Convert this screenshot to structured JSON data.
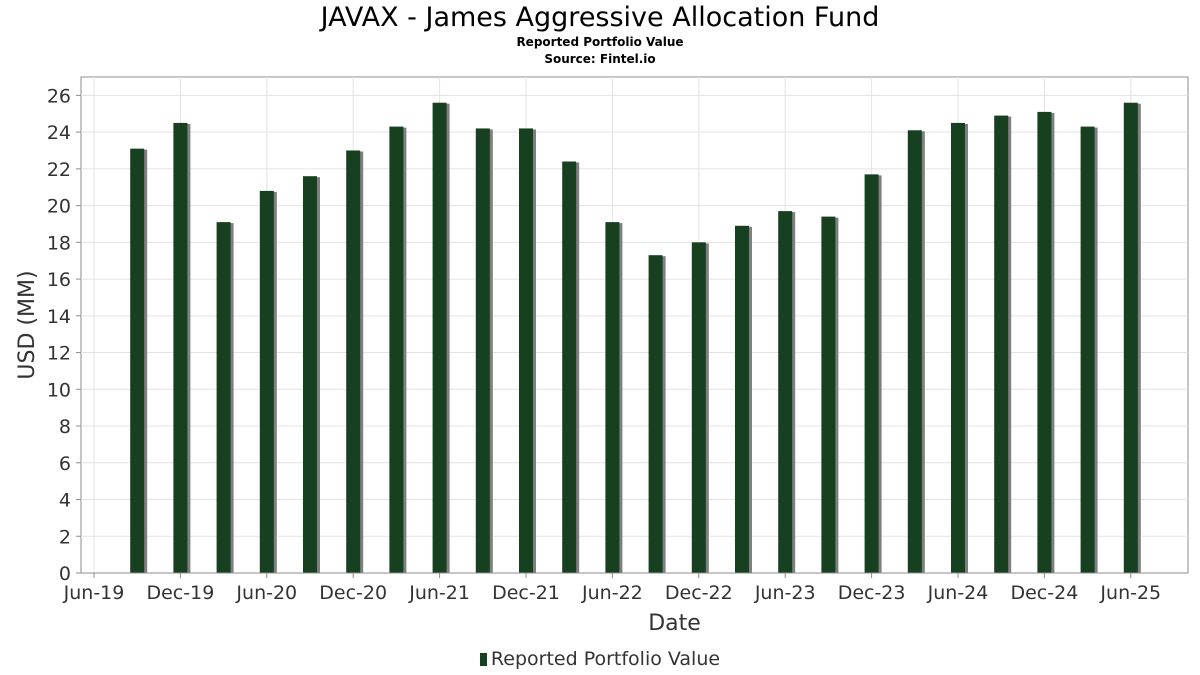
{
  "chart_data": {
    "type": "bar",
    "title": "JAVAX - James Aggressive Allocation Fund",
    "subtitle": [
      "Reported Portfolio Value",
      "Source: Fintel.io"
    ],
    "xlabel": "Date",
    "ylabel": "USD (MM)",
    "x_ticks": [
      "Jun-19",
      "Dec-19",
      "Jun-20",
      "Dec-20",
      "Jun-21",
      "Dec-21",
      "Jun-22",
      "Dec-22",
      "Jun-23",
      "Dec-23",
      "Jun-24",
      "Dec-24",
      "Jun-25"
    ],
    "ylim": [
      0,
      27
    ],
    "y_ticks": [
      0,
      2,
      4,
      6,
      8,
      10,
      12,
      14,
      16,
      18,
      20,
      22,
      24,
      26
    ],
    "grid": true,
    "legend_position": "bottom-center",
    "series": [
      {
        "name": "Reported Portfolio Value",
        "color": "#16401f",
        "shadow_color": "#7f7f7f",
        "points": [
          {
            "x": "Sep-19",
            "y": 23.1
          },
          {
            "x": "Dec-19",
            "y": 24.5
          },
          {
            "x": "Mar-20",
            "y": 19.1
          },
          {
            "x": "Jun-20",
            "y": 20.8
          },
          {
            "x": "Sep-20",
            "y": 21.6
          },
          {
            "x": "Dec-20",
            "y": 23.0
          },
          {
            "x": "Mar-21",
            "y": 24.3
          },
          {
            "x": "Jun-21",
            "y": 25.6
          },
          {
            "x": "Sep-21",
            "y": 24.2
          },
          {
            "x": "Dec-21",
            "y": 24.2
          },
          {
            "x": "Mar-22",
            "y": 22.4
          },
          {
            "x": "Jun-22",
            "y": 19.1
          },
          {
            "x": "Sep-22",
            "y": 17.3
          },
          {
            "x": "Dec-22",
            "y": 18.0
          },
          {
            "x": "Mar-23",
            "y": 18.9
          },
          {
            "x": "Jun-23",
            "y": 19.7
          },
          {
            "x": "Sep-23",
            "y": 19.4
          },
          {
            "x": "Dec-23",
            "y": 21.7
          },
          {
            "x": "Mar-24",
            "y": 24.1
          },
          {
            "x": "Jun-24",
            "y": 24.5
          },
          {
            "x": "Sep-24",
            "y": 24.9
          },
          {
            "x": "Dec-24",
            "y": 25.1
          },
          {
            "x": "Mar-25",
            "y": 24.3
          },
          {
            "x": "Jun-25",
            "y": 25.6
          }
        ]
      }
    ]
  }
}
